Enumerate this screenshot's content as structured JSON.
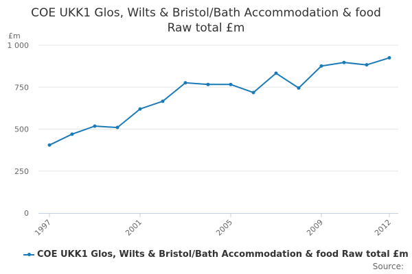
{
  "title_line1": "COE UKK1 Glos, Wilts & Bristol/Bath Accommodation & food",
  "title_line2": "Raw total £m",
  "source_label": "Source:",
  "colors": {
    "series": "#1a7ab8",
    "grid": "#e6e6e6",
    "axis": "#c0d0e0",
    "text": "#666666"
  },
  "chart_data": {
    "type": "line",
    "title": "COE UKK1 Glos, Wilts & Bristol/Bath Accommodation & food Raw total £m",
    "ylabel": "£m",
    "xlabel": "",
    "ylim": [
      0,
      1000
    ],
    "yticks": [
      0,
      250,
      500,
      750,
      1000
    ],
    "ytick_labels": [
      "0",
      "250",
      "500",
      "750",
      "1 000"
    ],
    "xlim": [
      1997,
      2012
    ],
    "xticks": [
      1997,
      2001,
      2005,
      2009,
      2012
    ],
    "x": [
      1997,
      1998,
      1999,
      2000,
      2001,
      2002,
      2003,
      2004,
      2005,
      2006,
      2007,
      2008,
      2009,
      2010,
      2011,
      2012
    ],
    "series": [
      {
        "name": "COE UKK1 Glos, Wilts & Bristol/Bath Accommodation & food Raw total £m",
        "values": [
          405,
          470,
          518,
          510,
          620,
          666,
          776,
          766,
          766,
          718,
          833,
          745,
          876,
          897,
          883,
          925
        ]
      }
    ],
    "grid": true,
    "legend_position": "bottom"
  }
}
